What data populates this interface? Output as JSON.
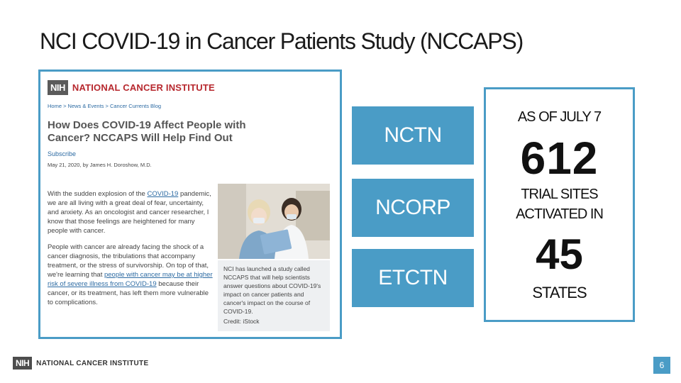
{
  "slide": {
    "title": "NCI COVID-19 in Cancer Patients Study (NCCAPS)",
    "page_number": "6"
  },
  "screenshot": {
    "nih_label": "NIH",
    "institute": "NATIONAL CANCER INSTITUTE",
    "breadcrumb": "Home > News & Events > Cancer Currents Blog",
    "article_title": "How Does COVID-19 Affect People with Cancer? NCCAPS Will Help Find Out",
    "subscribe": "Subscribe",
    "byline": "May 21, 2020, by James H. Doroshow, M.D.",
    "para1_a": "With the sudden explosion of the ",
    "para1_link": "COVID-19",
    "para1_b": " pandemic, we are all living with a great deal of fear, uncertainty, and anxiety. As an oncologist and cancer researcher, I know that those feelings are heightened for many people with cancer.",
    "para2_a": "People with cancer are already facing the shock of a cancer diagnosis, the tribulations that accompany treatment, or the stress of survivorship. On top of that, we're learning that ",
    "para2_link1": "people with cancer may be at higher risk of severe illness from COVID-19",
    "para2_b": " because their cancer, or its treatment, has left them more vulnerable to complications.",
    "caption": "NCI has launched a study called NCCAPS that will help scientists answer questions about COVID-19's impact on cancer patients and cancer's impact on the course of COVID-19.",
    "credit": "Credit: iStock"
  },
  "programs": [
    {
      "label": "NCTN"
    },
    {
      "label": "NCORP"
    },
    {
      "label": "ETCTN"
    }
  ],
  "stats": {
    "as_of": "AS OF JULY 7",
    "sites_count": "612",
    "sites_line1": "TRIAL SITES",
    "sites_line2": "ACTIVATED IN",
    "states_count": "45",
    "states_label": "STATES"
  },
  "footer": {
    "nih_label": "NIH",
    "institute": "NATIONAL CANCER INSTITUTE"
  },
  "colors": {
    "accent": "#4a9cc6",
    "nci_red": "#b7282e"
  }
}
